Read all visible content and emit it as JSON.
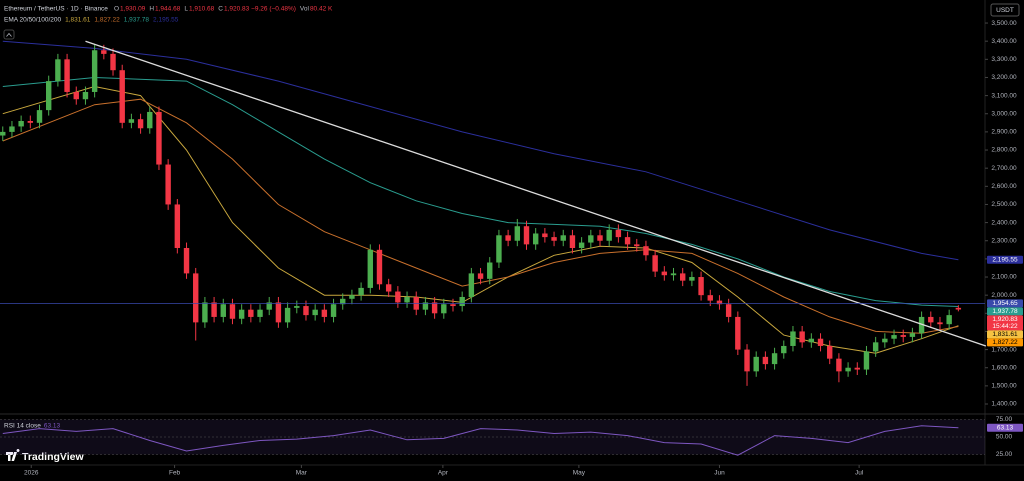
{
  "chart_data": {
    "type": "candlestick",
    "symbol": "Ethereum / TetherUS · 1D · Binance",
    "ohlc": [
      {
        "label": "O",
        "value": "1,930.09"
      },
      {
        "label": "H",
        "value": "1,944.68"
      },
      {
        "label": "L",
        "value": "1,910.68"
      },
      {
        "label": "C",
        "value": "1,920.83 −9.26 (−0.48%)"
      },
      {
        "label": "Vol",
        "value": "80.42 K"
      }
    ],
    "ema_label": "EMA 20/50/100/200",
    "currency": "USDT",
    "brand": "TradingView",
    "xlim": [
      -0.3,
      106.9
    ],
    "ylim": [
      1367,
      3627
    ],
    "xticks": [
      {
        "value": 3.1,
        "label": "2026"
      },
      {
        "value": 18.7,
        "label": "Feb"
      },
      {
        "value": 32.5,
        "label": "Mar"
      },
      {
        "value": 47.9,
        "label": "Apr"
      },
      {
        "value": 62.7,
        "label": "May"
      },
      {
        "value": 78,
        "label": "Jun"
      },
      {
        "value": 93.2,
        "label": "Jul"
      }
    ],
    "yticks": [
      {
        "value": 1400,
        "label": "1,400.00"
      },
      {
        "value": 1500,
        "label": "1,500.00"
      },
      {
        "value": 1600,
        "label": "1,600.00"
      },
      {
        "value": 1700,
        "label": "1,700.00"
      },
      {
        "value": 1800,
        "label": "1,800.00"
      },
      {
        "value": 1900,
        "label": "1,900.00"
      },
      {
        "value": 2000,
        "label": "2,000.00"
      },
      {
        "value": 2100,
        "label": "2,100.00"
      },
      {
        "value": 2200,
        "label": "2,200.00"
      },
      {
        "value": 2300,
        "label": "2,300.00"
      },
      {
        "value": 2400,
        "label": "2,400.00"
      },
      {
        "value": 2500,
        "label": "2,500.00"
      },
      {
        "value": 2600,
        "label": "2,600.00"
      },
      {
        "value": 2700,
        "label": "2,700.00"
      },
      {
        "value": 2800,
        "label": "2,800.00"
      },
      {
        "value": 2900,
        "label": "2,900.00"
      },
      {
        "value": 3000,
        "label": "3,000.00"
      },
      {
        "value": 3100,
        "label": "3,100.00"
      },
      {
        "value": 3200,
        "label": "3,200.00"
      },
      {
        "value": 3300,
        "label": "3,300.00"
      },
      {
        "value": 3400,
        "label": "3,400.00"
      },
      {
        "value": 3500,
        "label": "3,500.00"
      }
    ],
    "candles": {
      "up_color": "#4cae4f",
      "down_color": "#f23645",
      "open": [
        2880,
        2900,
        2930,
        2960,
        2950,
        3020,
        3180,
        3300,
        3120,
        3080,
        3120,
        3350,
        3330,
        3240,
        2950,
        2970,
        2920,
        3010,
        2720,
        2500,
        2260,
        2120,
        1850,
        1960,
        1880,
        1950,
        1870,
        1920,
        1880,
        1920,
        1960,
        1850,
        1930,
        1940,
        1890,
        1920,
        1880,
        1950,
        1980,
        2000,
        2040,
        2250,
        2060,
        2020,
        1960,
        1990,
        1920,
        1960,
        1900,
        1950,
        1940,
        1990,
        2120,
        2090,
        2180,
        2330,
        2300,
        2380,
        2280,
        2340,
        2320,
        2300,
        2330,
        2260,
        2290,
        2330,
        2300,
        2360,
        2320,
        2280,
        2270,
        2220,
        2130,
        2110,
        2120,
        2080,
        2100,
        2000,
        1970,
        1950,
        1880,
        1700,
        1580,
        1660,
        1620,
        1680,
        1720,
        1800,
        1740,
        1760,
        1720,
        1650,
        1580,
        1600,
        1590,
        1690,
        1740,
        1760,
        1780,
        1770,
        1790,
        1880,
        1850,
        1840,
        1930.09
      ],
      "high": [
        2930,
        2960,
        2990,
        2990,
        3050,
        3210,
        3330,
        3330,
        3150,
        3150,
        3380,
        3380,
        3360,
        3270,
        3000,
        3000,
        3040,
        3040,
        2750,
        2530,
        2290,
        2150,
        1990,
        1990,
        1980,
        1980,
        1950,
        1950,
        1950,
        1990,
        1990,
        1960,
        1970,
        1970,
        1950,
        1950,
        1980,
        2010,
        2030,
        2070,
        2280,
        2280,
        2090,
        2050,
        2020,
        2020,
        1990,
        1990,
        1980,
        1980,
        2020,
        2150,
        2150,
        2210,
        2360,
        2360,
        2420,
        2410,
        2370,
        2370,
        2350,
        2360,
        2360,
        2320,
        2360,
        2360,
        2390,
        2390,
        2350,
        2310,
        2300,
        2250,
        2160,
        2150,
        2150,
        2130,
        2130,
        2030,
        2000,
        1980,
        1910,
        1730,
        1690,
        1690,
        1710,
        1750,
        1830,
        1830,
        1790,
        1790,
        1750,
        1680,
        1630,
        1630,
        1720,
        1770,
        1790,
        1810,
        1810,
        1820,
        1910,
        1910,
        1880,
        1920,
        1944.68
      ],
      "low": [
        2850,
        2870,
        2900,
        2920,
        2920,
        2990,
        3150,
        3090,
        3050,
        3050,
        3090,
        3300,
        3210,
        2920,
        2920,
        2890,
        2890,
        2690,
        2470,
        2230,
        2090,
        1750,
        1820,
        1850,
        1850,
        1840,
        1840,
        1850,
        1850,
        1890,
        1820,
        1820,
        1900,
        1860,
        1860,
        1850,
        1850,
        1920,
        1950,
        1970,
        2010,
        2030,
        1990,
        1930,
        1930,
        1890,
        1890,
        1870,
        1870,
        1910,
        1910,
        1960,
        2060,
        2060,
        2150,
        2270,
        2270,
        2250,
        2250,
        2290,
        2270,
        2270,
        2230,
        2230,
        2260,
        2270,
        2270,
        2290,
        2250,
        2240,
        2190,
        2100,
        2080,
        2080,
        2050,
        2050,
        1970,
        1940,
        1920,
        1850,
        1670,
        1500,
        1550,
        1590,
        1590,
        1650,
        1690,
        1710,
        1710,
        1690,
        1620,
        1520,
        1550,
        1560,
        1560,
        1660,
        1710,
        1730,
        1740,
        1740,
        1760,
        1820,
        1810,
        1810,
        1910.68
      ],
      "close": [
        2900,
        2930,
        2960,
        2950,
        3020,
        3180,
        3300,
        3120,
        3080,
        3120,
        3350,
        3330,
        3240,
        2950,
        2970,
        2920,
        3010,
        2720,
        2500,
        2260,
        2120,
        1850,
        1960,
        1880,
        1950,
        1870,
        1920,
        1880,
        1920,
        1960,
        1850,
        1930,
        1940,
        1890,
        1920,
        1880,
        1950,
        1980,
        2000,
        2040,
        2250,
        2060,
        2020,
        1960,
        1990,
        1920,
        1960,
        1900,
        1950,
        1940,
        1990,
        2120,
        2090,
        2180,
        2330,
        2300,
        2380,
        2280,
        2340,
        2320,
        2300,
        2330,
        2260,
        2290,
        2330,
        2300,
        2360,
        2320,
        2280,
        2270,
        2220,
        2130,
        2110,
        2120,
        2080,
        2100,
        2000,
        1970,
        1950,
        1880,
        1700,
        1580,
        1660,
        1620,
        1680,
        1720,
        1800,
        1740,
        1760,
        1720,
        1650,
        1580,
        1600,
        1590,
        1690,
        1740,
        1760,
        1780,
        1770,
        1790,
        1880,
        1850,
        1840,
        1890,
        1920.83
      ]
    },
    "ema": [
      {
        "color": "#c9a83e",
        "last_label": "1,831.61",
        "x": [
          0,
          10,
          15,
          20,
          25,
          30,
          35,
          40,
          45,
          50,
          55,
          60,
          65,
          70,
          75,
          80,
          85,
          90,
          95,
          100,
          104
        ],
        "values": [
          3000,
          3150,
          3100,
          2800,
          2400,
          2150,
          2000,
          2000,
          1990,
          1960,
          2100,
          2220,
          2270,
          2260,
          2180,
          1990,
          1780,
          1720,
          1680,
          1760,
          1831.61
        ]
      },
      {
        "color": "#c8702c",
        "last_label": "1,827.22",
        "x": [
          0,
          10,
          15,
          20,
          25,
          30,
          35,
          40,
          45,
          50,
          55,
          60,
          65,
          70,
          75,
          80,
          85,
          90,
          95,
          100,
          104
        ],
        "values": [
          2850,
          3050,
          3080,
          2950,
          2750,
          2500,
          2350,
          2250,
          2150,
          2050,
          2100,
          2180,
          2230,
          2250,
          2230,
          2120,
          1990,
          1880,
          1800,
          1790,
          1827.22
        ]
      },
      {
        "color": "#2a9d8f",
        "last_label": "1,937.78",
        "x": [
          0,
          10,
          20,
          25,
          30,
          35,
          40,
          45,
          50,
          55,
          60,
          65,
          70,
          75,
          80,
          85,
          90,
          95,
          100,
          104
        ],
        "values": [
          3150,
          3200,
          3180,
          3050,
          2900,
          2750,
          2620,
          2520,
          2450,
          2400,
          2390,
          2380,
          2340,
          2280,
          2200,
          2100,
          2020,
          1970,
          1945,
          1937.78
        ]
      },
      {
        "color": "#2b2f9c",
        "last_label": "2,195.55",
        "x": [
          0,
          10,
          20,
          30,
          40,
          50,
          60,
          70,
          80,
          90,
          100,
          104
        ],
        "values": [
          3400,
          3360,
          3300,
          3180,
          3040,
          2900,
          2780,
          2680,
          2520,
          2360,
          2230,
          2195.55
        ]
      }
    ],
    "trendline": {
      "color": "#dcdcdc",
      "x": [
        9,
        107
      ],
      "values": [
        3400,
        1720
      ]
    },
    "badges": [
      {
        "value": 2195.55,
        "label": "2,195.55",
        "color": "#2b2f9c"
      },
      {
        "value": 1954.65,
        "label": "1,954.65",
        "color": "#3949ab",
        "line": true
      },
      {
        "value": 1937.78,
        "label": "1,937.78",
        "color": "#2a9d8f"
      },
      {
        "value": 1920.83,
        "label": "1,920.83",
        "sub": "15:44:22",
        "color": "#f23645"
      },
      {
        "value": 1831.61,
        "label": "1,831.61",
        "color": "#f5c242"
      },
      {
        "value": 1827.22,
        "label": "1,827.22",
        "color": "#ff9800"
      }
    ],
    "rsi": {
      "label": "RSI 14 close",
      "value_label": "63.13",
      "color": "#7e57c2",
      "ylim": [
        20,
        80
      ],
      "yticks": [
        {
          "value": 75,
          "label": "75.00"
        },
        {
          "value": 50,
          "label": "50.00"
        },
        {
          "value": 25,
          "label": "25.00"
        }
      ],
      "x": [
        0,
        4,
        8,
        12,
        16,
        20,
        24,
        28,
        32,
        36,
        40,
        44,
        48,
        52,
        56,
        60,
        64,
        68,
        72,
        76,
        80,
        84,
        88,
        92,
        96,
        100,
        104
      ],
      "values": [
        55,
        62,
        58,
        62,
        45,
        30,
        38,
        45,
        47,
        52,
        60,
        46,
        48,
        62,
        60,
        55,
        57,
        52,
        42,
        40,
        24,
        52,
        48,
        42,
        58,
        66,
        63.13
      ]
    }
  }
}
